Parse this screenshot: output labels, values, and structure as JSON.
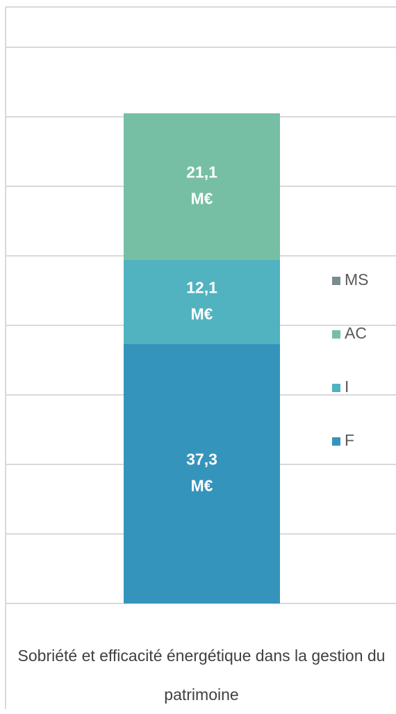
{
  "chart_data": {
    "type": "stacked_bar",
    "categories": [
      "Sobriété et efficacité énergétique dans la gestion du patrimoine"
    ],
    "series": [
      {
        "name": "MS",
        "color": "#7b8c8f",
        "values": [
          null
        ]
      },
      {
        "name": "AC",
        "color": "#76bfa4",
        "values": [
          21.1
        ],
        "value_labels": [
          "21,1 M€"
        ]
      },
      {
        "name": "I",
        "color": "#50b3bf",
        "values": [
          12.1
        ],
        "value_labels": [
          "12,1 M€"
        ]
      },
      {
        "name": "F",
        "color": "#3594bb",
        "values": [
          37.3
        ],
        "value_labels": [
          "37,3 M€"
        ]
      }
    ],
    "stack_order": [
      "F",
      "I",
      "AC",
      "MS"
    ],
    "ylim": [
      0,
      80
    ],
    "yticks": [
      0,
      10,
      20,
      30,
      40,
      50,
      60,
      70,
      80
    ],
    "grid": true,
    "tick_labels": false,
    "legend": "right"
  }
}
